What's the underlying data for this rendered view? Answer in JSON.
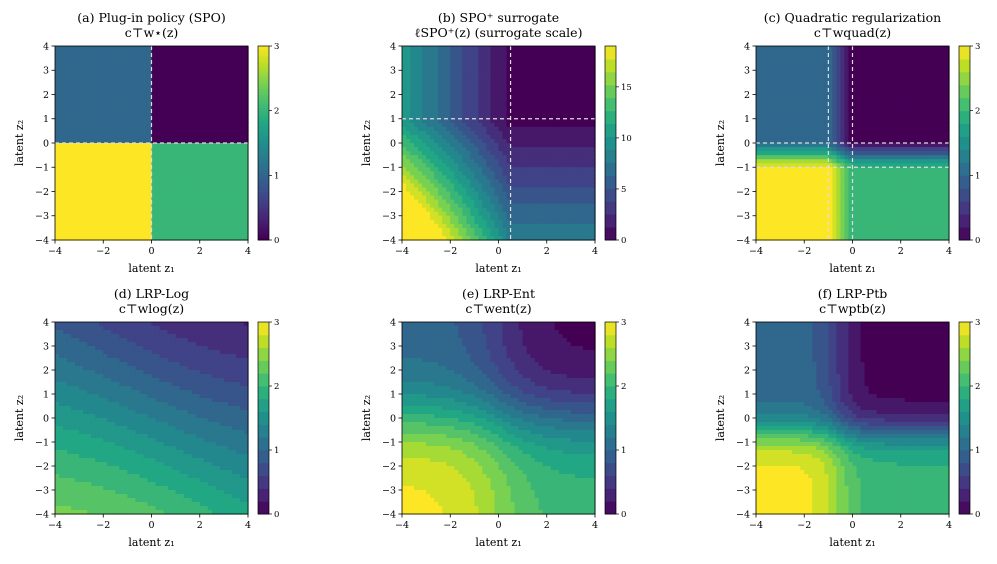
{
  "chart_data": [
    {
      "type": "heatmap",
      "field": "spo",
      "title_lines": [
        "(a) Plug-in policy (SPO)",
        "c⊤w⋆(z)"
      ],
      "xlabel": "latent z₁",
      "ylabel": "latent z₂",
      "xlim": [
        -4,
        4
      ],
      "ylim": [
        -4,
        4
      ],
      "xticks": [
        "−4",
        "−2",
        "0",
        "2",
        "4"
      ],
      "yticks": [
        "−4",
        "−3",
        "−2",
        "−1",
        "0",
        "1",
        "2",
        "3",
        "4"
      ],
      "colorbar": {
        "min": 0,
        "max": 3,
        "ticks": [
          "0",
          "1",
          "2",
          "3"
        ],
        "tick_values": [
          0,
          1,
          2,
          3
        ]
      },
      "regions": [
        {
          "z1": "< 0",
          "z2": "> 0",
          "value": 1
        },
        {
          "z1": "> 0",
          "z2": "> 0",
          "value": 0
        },
        {
          "z1": "< 0",
          "z2": "< 0",
          "value": 3
        },
        {
          "z1": "> 0",
          "z2": "< 0",
          "value": 2
        }
      ],
      "dashed_lines": {
        "vertical": [
          0
        ],
        "horizontal": [
          0
        ]
      }
    },
    {
      "type": "heatmap",
      "field": "spoplus",
      "title_lines": [
        "(b) SPO⁺ surrogate",
        "ℓSPO⁺(z) (surrogate scale)"
      ],
      "xlabel": "latent z₁",
      "ylabel": "latent z₂",
      "xlim": [
        -4,
        4
      ],
      "ylim": [
        -4,
        4
      ],
      "xticks": [
        "−4",
        "−2",
        "0",
        "2",
        "4"
      ],
      "yticks": [
        "−4",
        "−3",
        "−2",
        "−1",
        "0",
        "1",
        "2",
        "3",
        "4"
      ],
      "colorbar": {
        "min": 0,
        "max": 19,
        "ticks": [
          "0",
          "5",
          "10",
          "15"
        ],
        "tick_values": [
          0,
          5,
          10,
          15
        ]
      },
      "dashed_lines": {
        "vertical": [
          0.5
        ],
        "horizontal": [
          1
        ]
      }
    },
    {
      "type": "heatmap",
      "field": "quad",
      "title_lines": [
        "(c) Quadratic regularization",
        "c⊤wquad(z)"
      ],
      "xlabel": "latent z₁",
      "ylabel": "latent z₂",
      "xlim": [
        -4,
        4
      ],
      "ylim": [
        -4,
        4
      ],
      "xticks": [
        "−4",
        "−2",
        "0",
        "2",
        "4"
      ],
      "yticks": [
        "−4",
        "−3",
        "−2",
        "−1",
        "0",
        "1",
        "2",
        "3",
        "4"
      ],
      "colorbar": {
        "min": 0,
        "max": 3,
        "ticks": [
          "0",
          "1",
          "2",
          "3"
        ],
        "tick_values": [
          0,
          1,
          2,
          3
        ]
      },
      "dashed_lines": {
        "vertical": [
          -1,
          0
        ],
        "horizontal": [
          0,
          -1
        ]
      }
    },
    {
      "type": "heatmap",
      "field": "log",
      "title_lines": [
        "(d) LRP-Log",
        "c⊤wlog(z)"
      ],
      "xlabel": "latent z₁",
      "ylabel": "latent z₂",
      "xlim": [
        -4,
        4
      ],
      "ylim": [
        -4,
        4
      ],
      "xticks": [
        "−4",
        "−2",
        "0",
        "2",
        "4"
      ],
      "yticks": [
        "−4",
        "−3",
        "−2",
        "−1",
        "0",
        "1",
        "2",
        "3",
        "4"
      ],
      "colorbar": {
        "min": 0,
        "max": 3,
        "ticks": [
          "0",
          "1",
          "2",
          "3"
        ],
        "tick_values": [
          0,
          1,
          2,
          3
        ]
      }
    },
    {
      "type": "heatmap",
      "field": "ent",
      "title_lines": [
        "(e) LRP-Ent",
        "c⊤went(z)"
      ],
      "xlabel": "latent z₁",
      "ylabel": "latent z₂",
      "xlim": [
        -4,
        4
      ],
      "ylim": [
        -4,
        4
      ],
      "xticks": [
        "−4",
        "−2",
        "0",
        "2",
        "4"
      ],
      "yticks": [
        "−4",
        "−3",
        "−2",
        "−1",
        "0",
        "1",
        "2",
        "3",
        "4"
      ],
      "colorbar": {
        "min": 0,
        "max": 3,
        "ticks": [
          "0",
          "1",
          "2",
          "3"
        ],
        "tick_values": [
          0,
          1,
          2,
          3
        ]
      }
    },
    {
      "type": "heatmap",
      "field": "ptb",
      "title_lines": [
        "(f) LRP-Ptb",
        "c⊤wptb(z)"
      ],
      "xlabel": "latent z₁",
      "ylabel": "latent z₂",
      "xlim": [
        -4,
        4
      ],
      "ylim": [
        -4,
        4
      ],
      "xticks": [
        "−4",
        "−2",
        "0",
        "2",
        "4"
      ],
      "yticks": [
        "−4",
        "−3",
        "−2",
        "−1",
        "0",
        "1",
        "2",
        "3",
        "4"
      ],
      "colorbar": {
        "min": 0,
        "max": 3,
        "ticks": [
          "0",
          "1",
          "2",
          "3"
        ],
        "tick_values": [
          0,
          1,
          2,
          3
        ]
      }
    }
  ]
}
